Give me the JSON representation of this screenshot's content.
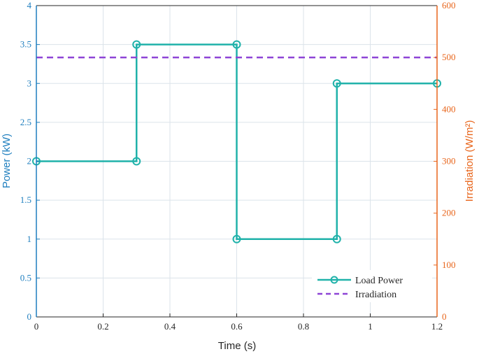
{
  "chart_data": {
    "type": "line",
    "xlabel": "Time (s)",
    "ylabel_left": "Power (kW)",
    "ylabel_right": "Irradiation (W/m²)",
    "xlim": [
      0,
      1.2
    ],
    "ylim_left": [
      0,
      4
    ],
    "ylim_right": [
      0,
      600
    ],
    "x_ticks": [
      "0",
      "0.2",
      "0.4",
      "0.6",
      "0.8",
      "1",
      "1.2"
    ],
    "y_left_ticks": [
      "0",
      "0.5",
      "1",
      "1.5",
      "2",
      "2.5",
      "3",
      "3.5",
      "4"
    ],
    "y_right_ticks": [
      "0",
      "100",
      "200",
      "300",
      "400",
      "500",
      "600"
    ],
    "grid": true,
    "legend_position": "bottom-right",
    "series": [
      {
        "name": "Load Power",
        "axis": "left",
        "style": "step-with-circle-markers",
        "color": "#20b2aa",
        "x": [
          0,
          0.3,
          0.3,
          0.6,
          0.6,
          0.9,
          0.9,
          1.2
        ],
        "y": [
          2,
          2,
          3.5,
          3.5,
          1,
          1,
          3,
          3
        ]
      },
      {
        "name": "Irradiation",
        "axis": "right",
        "style": "dashed",
        "color": "#8e44d6",
        "x": [
          0,
          1.2
        ],
        "y": [
          500,
          500
        ]
      }
    ],
    "colors": {
      "left_axis": "#1f7fbf",
      "right_axis": "#e8651b",
      "grid": "#dbe3ea"
    }
  }
}
